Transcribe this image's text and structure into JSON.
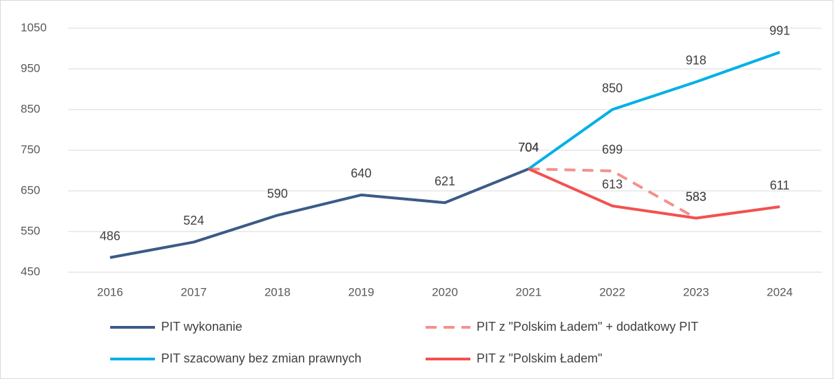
{
  "chart_data": {
    "type": "line",
    "categories": [
      "2016",
      "2017",
      "2018",
      "2019",
      "2020",
      "2021",
      "2022",
      "2023",
      "2024"
    ],
    "series": [
      {
        "name": "PIT wykonanie",
        "color": "#3b5b87",
        "dashed": false,
        "values": [
          486,
          524,
          590,
          640,
          621,
          704,
          null,
          null,
          null
        ]
      },
      {
        "name": "PIT z \"Polskim Ładem\" + dodatkowy PIT",
        "color": "#f4918d",
        "dashed": true,
        "values": [
          null,
          null,
          null,
          null,
          null,
          704,
          699,
          583,
          null
        ]
      },
      {
        "name": "PIT szacowany bez zmian prawnych",
        "color": "#00b0e6",
        "dashed": false,
        "values": [
          null,
          null,
          null,
          null,
          null,
          704,
          850,
          918,
          991
        ]
      },
      {
        "name": "PIT z \"Polskim Ładem\"",
        "color": "#f2514f",
        "dashed": false,
        "values": [
          null,
          null,
          null,
          null,
          null,
          704,
          613,
          583,
          611
        ]
      }
    ],
    "ylim": [
      450,
      1050
    ],
    "yticks": [
      450,
      550,
      650,
      750,
      850,
      950,
      1050
    ],
    "grid": true,
    "legend": "bottom"
  }
}
